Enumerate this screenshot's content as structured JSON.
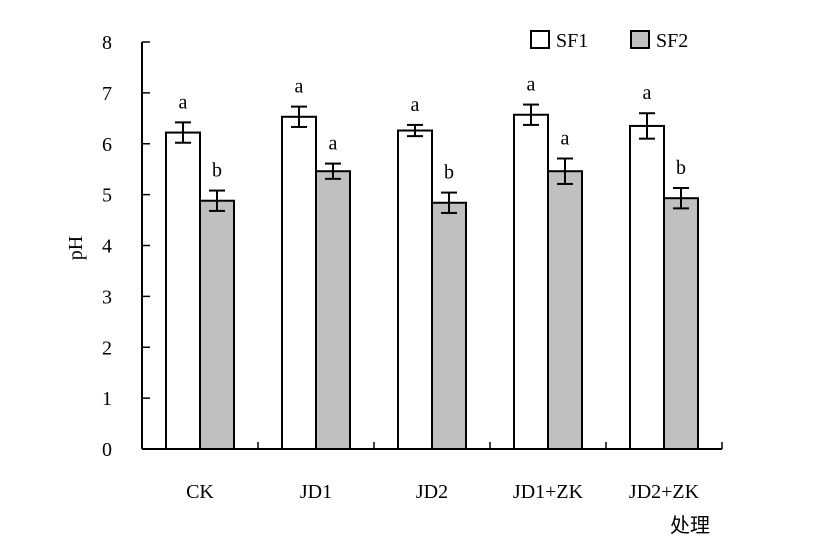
{
  "chart_data": {
    "type": "bar",
    "categories": [
      "CK",
      "JD1",
      "JD2",
      "JD1+ZK",
      "JD2+ZK"
    ],
    "series": [
      {
        "name": "SF1",
        "color": "#ffffff",
        "values": [
          6.22,
          6.53,
          6.26,
          6.57,
          6.35
        ],
        "errors": [
          0.2,
          0.2,
          0.11,
          0.2,
          0.25
        ],
        "sig": [
          "a",
          "a",
          "a",
          "a",
          "a"
        ]
      },
      {
        "name": "SF2",
        "color": "#c0c0c0",
        "values": [
          4.88,
          5.46,
          4.84,
          5.46,
          4.93
        ],
        "errors": [
          0.2,
          0.15,
          0.2,
          0.25,
          0.2
        ],
        "sig": [
          "b",
          "a",
          "b",
          "a",
          "b"
        ]
      }
    ],
    "ylabel": "pH",
    "xlabel": "处理",
    "ylim": [
      0,
      8
    ],
    "yticks": [
      "0",
      "1",
      "2",
      "3",
      "4",
      "5",
      "6",
      "7",
      "8"
    ],
    "legend_position": "top-right",
    "grid": false
  }
}
